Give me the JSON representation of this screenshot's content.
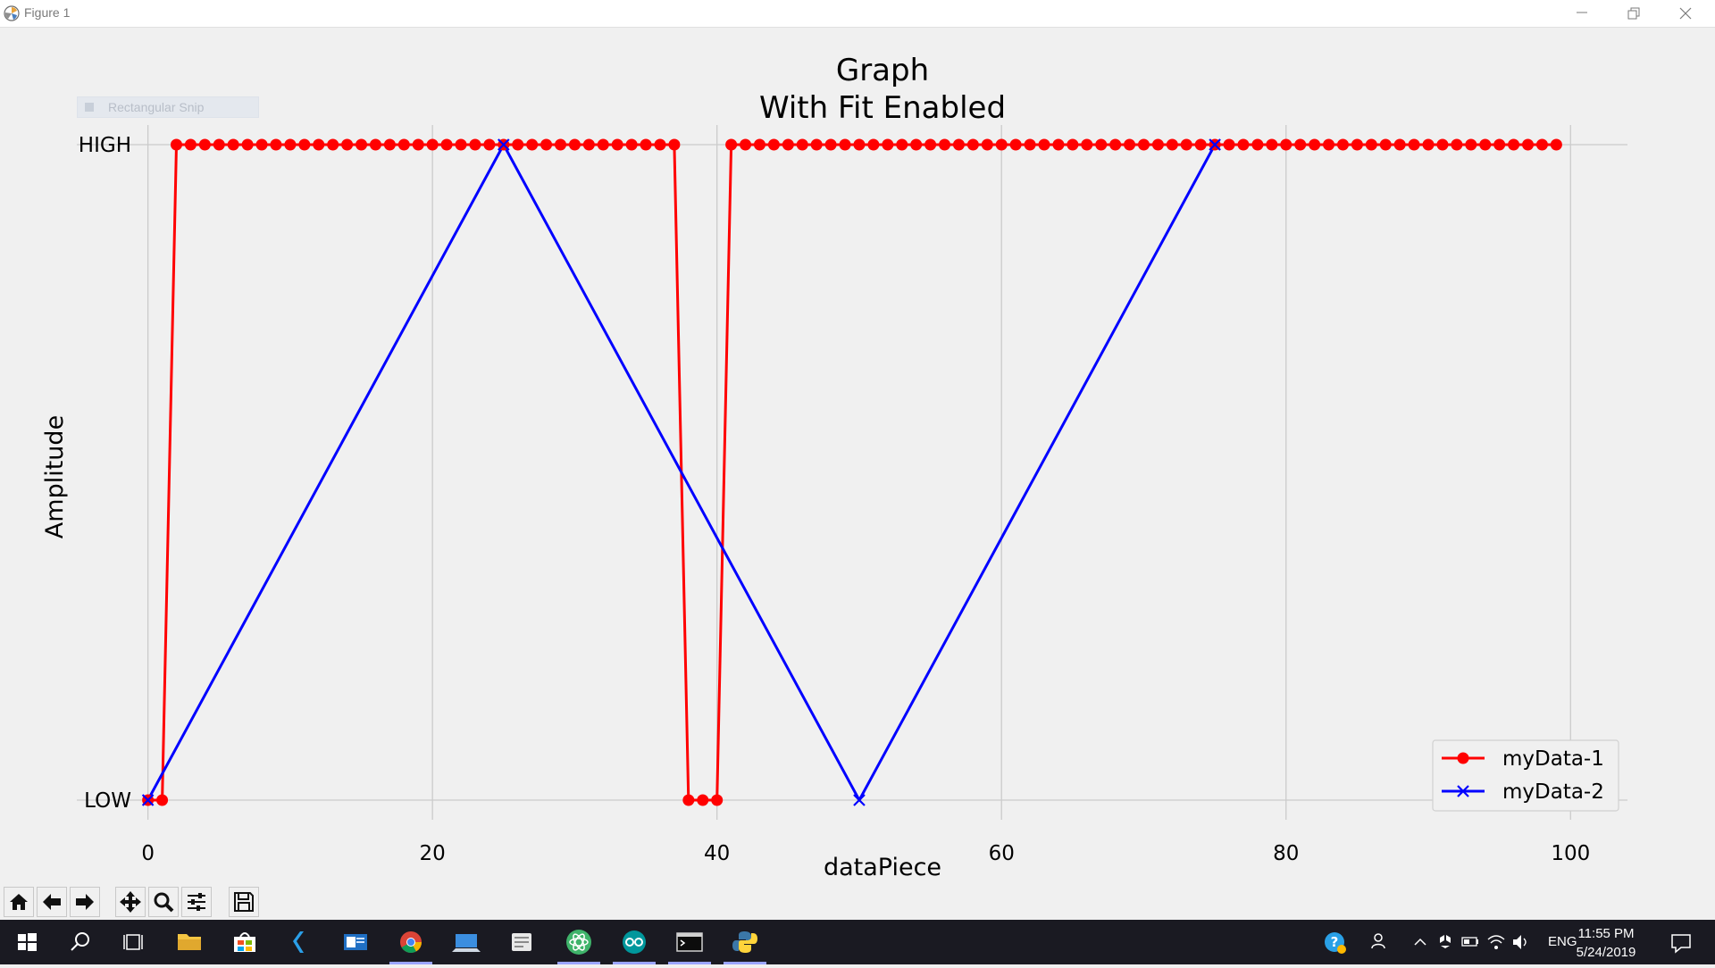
{
  "window": {
    "title": "Figure 1"
  },
  "overlay": {
    "snip_label": "Rectangular Snip"
  },
  "chart_data": {
    "type": "line",
    "title": "Graph",
    "subtitle": "With Fit Enabled",
    "xlabel": "dataPiece",
    "ylabel": "Amplitude",
    "xlim": [
      -5,
      104
    ],
    "ylim": [
      -0.03,
      1.03
    ],
    "x_ticks": [
      0,
      20,
      40,
      60,
      80,
      100
    ],
    "y_ticks": [
      {
        "value": 0,
        "label": "LOW"
      },
      {
        "value": 1,
        "label": "HIGH"
      }
    ],
    "grid": true,
    "legend": "lower right",
    "series": [
      {
        "name": "myData-1",
        "color": "#ff0000",
        "marker": "circle",
        "x": [
          0,
          1,
          2,
          3,
          4,
          5,
          6,
          7,
          8,
          9,
          10,
          11,
          12,
          13,
          14,
          15,
          16,
          17,
          18,
          19,
          20,
          21,
          22,
          23,
          24,
          25,
          26,
          27,
          28,
          29,
          30,
          31,
          32,
          33,
          34,
          35,
          36,
          37,
          38,
          39,
          40,
          41,
          42,
          43,
          44,
          45,
          46,
          47,
          48,
          49,
          50,
          51,
          52,
          53,
          54,
          55,
          56,
          57,
          58,
          59,
          60,
          61,
          62,
          63,
          64,
          65,
          66,
          67,
          68,
          69,
          70,
          71,
          72,
          73,
          74,
          75,
          76,
          77,
          78,
          79,
          80,
          81,
          82,
          83,
          84,
          85,
          86,
          87,
          88,
          89,
          90,
          91,
          92,
          93,
          94,
          95,
          96,
          97,
          98,
          99
        ],
        "y": [
          0,
          0,
          1,
          1,
          1,
          1,
          1,
          1,
          1,
          1,
          1,
          1,
          1,
          1,
          1,
          1,
          1,
          1,
          1,
          1,
          1,
          1,
          1,
          1,
          1,
          1,
          1,
          1,
          1,
          1,
          1,
          1,
          1,
          1,
          1,
          1,
          1,
          1,
          0,
          0,
          0,
          1,
          1,
          1,
          1,
          1,
          1,
          1,
          1,
          1,
          1,
          1,
          1,
          1,
          1,
          1,
          1,
          1,
          1,
          1,
          1,
          1,
          1,
          1,
          1,
          1,
          1,
          1,
          1,
          1,
          1,
          1,
          1,
          1,
          1,
          1,
          1,
          1,
          1,
          1,
          1,
          1,
          1,
          1,
          1,
          1,
          1,
          1,
          1,
          1,
          1,
          1,
          1,
          1,
          1,
          1,
          1,
          1,
          1,
          1
        ]
      },
      {
        "name": "myData-2",
        "color": "#0000ff",
        "marker": "x",
        "x": [
          0,
          25,
          50,
          75
        ],
        "y": [
          0,
          1,
          0,
          1
        ]
      }
    ]
  },
  "toolbar": {
    "buttons": [
      {
        "name": "home-button",
        "icon": "home-icon"
      },
      {
        "name": "back-button",
        "icon": "arrow-left-icon"
      },
      {
        "name": "forward-button",
        "icon": "arrow-right-icon"
      },
      {
        "name": "pan-button",
        "icon": "move-icon"
      },
      {
        "name": "zoom-button",
        "icon": "magnifier-icon"
      },
      {
        "name": "configure-subplots-button",
        "icon": "sliders-icon"
      },
      {
        "name": "save-button",
        "icon": "floppy-icon"
      }
    ]
  },
  "taskbar": {
    "language": "ENG",
    "time": "11:55 PM",
    "date": "5/24/2019"
  }
}
